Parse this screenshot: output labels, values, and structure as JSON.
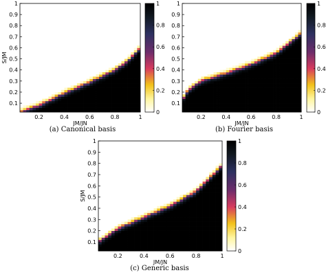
{
  "chart_data": [
    {
      "type": "heatmap",
      "caption": "(a) Canonical basis",
      "xlabel": "JM/JN",
      "ylabel": "S/JM",
      "xlim": [
        0.05,
        1.0
      ],
      "ylim": [
        0.02,
        1.0
      ],
      "xticks": [
        "0.2",
        "0.4",
        "0.6",
        "0.8",
        "1"
      ],
      "yticks": [
        "0.1",
        "0.2",
        "0.3",
        "0.4",
        "0.5",
        "0.6",
        "0.7",
        "0.8",
        "0.9",
        "1"
      ],
      "colorbar": {
        "range": [
          0,
          1
        ],
        "ticks": [
          "0",
          "0.2",
          "0.4",
          "0.6",
          "0.8",
          "1"
        ]
      },
      "boundary": {
        "x": [
          0.05,
          0.2,
          0.4,
          0.6,
          0.8,
          0.9,
          1.0
        ],
        "y": [
          0.02,
          0.08,
          0.19,
          0.29,
          0.4,
          0.48,
          0.6
        ]
      }
    },
    {
      "type": "heatmap",
      "caption": "(b) Fourier basis",
      "xlabel": "JM/JN",
      "ylabel": "",
      "xlim": [
        0.05,
        1.0
      ],
      "ylim": [
        0.02,
        1.0
      ],
      "xticks": [
        "0.2",
        "0.4",
        "0.6",
        "0.8",
        "1"
      ],
      "yticks": [
        "0.1",
        "0.2",
        "0.3",
        "0.4",
        "0.5",
        "0.6",
        "0.7",
        "0.8",
        "0.9",
        "1"
      ],
      "colorbar": {
        "range": [
          0,
          1
        ],
        "ticks": [
          "0",
          "0.2",
          "0.4",
          "0.6",
          "0.8",
          "1"
        ]
      },
      "boundary": {
        "x": [
          0.05,
          0.1,
          0.2,
          0.4,
          0.6,
          0.8,
          1.0
        ],
        "y": [
          0.13,
          0.22,
          0.3,
          0.37,
          0.45,
          0.55,
          0.73
        ]
      }
    },
    {
      "type": "heatmap",
      "caption": "(c) Generic basis",
      "xlabel": "JM/JN",
      "ylabel": "S/JM",
      "xlim": [
        0.05,
        1.0
      ],
      "ylim": [
        0.02,
        1.0
      ],
      "xticks": [
        "0.2",
        "0.4",
        "0.6",
        "0.8",
        "1"
      ],
      "yticks": [
        "0.1",
        "0.2",
        "0.3",
        "0.4",
        "0.5",
        "0.6",
        "0.7",
        "0.8",
        "0.9",
        "1"
      ],
      "colorbar": {
        "range": [
          0,
          1
        ],
        "ticks": [
          "0",
          "0.2",
          "0.4",
          "0.6",
          "0.8",
          "1"
        ]
      },
      "boundary": {
        "x": [
          0.05,
          0.2,
          0.4,
          0.6,
          0.8,
          1.0
        ],
        "y": [
          0.1,
          0.22,
          0.32,
          0.42,
          0.55,
          0.78
        ]
      }
    }
  ]
}
